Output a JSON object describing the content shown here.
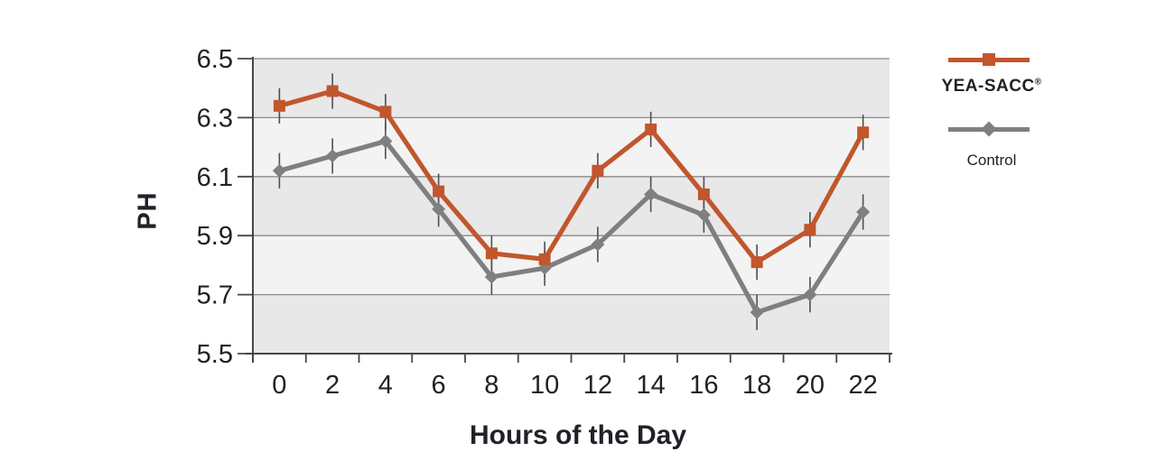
{
  "chart_data": {
    "type": "line",
    "title": "",
    "xlabel": "Hours of the Day",
    "ylabel": "PH",
    "x_tick_labels": [
      "0",
      "2",
      "4",
      "6",
      "8",
      "10",
      "12",
      "14",
      "16",
      "18",
      "20",
      "22"
    ],
    "x": [
      0,
      2,
      4,
      6,
      8,
      10,
      12,
      14,
      16,
      18,
      20,
      22
    ],
    "ylim": [
      5.5,
      6.5
    ],
    "yticks": [
      6.5,
      6.3,
      6.1,
      5.9,
      5.7,
      5.5
    ],
    "grid": "horizontal gridlines at each 0.2 step",
    "band_colors": [
      "#e8e8e8",
      "#f3f3f3"
    ],
    "gridline_color": "#8a8a8a",
    "axis_color": "#454545",
    "error_bar_color": "#4f4f4f",
    "error_bar_half_height": 0.06,
    "legend_position": "right",
    "series": [
      {
        "name": "YEA-SACC®",
        "color": "#c2562d",
        "marker": "square",
        "values": [
          6.34,
          6.39,
          6.32,
          6.05,
          5.84,
          5.82,
          6.12,
          6.26,
          6.04,
          5.81,
          5.92,
          6.25
        ]
      },
      {
        "name": "Control",
        "color": "#7f7f7f",
        "marker": "diamond",
        "values": [
          6.12,
          6.17,
          6.22,
          5.99,
          5.76,
          5.79,
          5.87,
          6.04,
          5.97,
          5.64,
          5.7,
          5.98
        ]
      }
    ]
  },
  "legend": {
    "series1_label": "YEA-SACC",
    "series1_reg_mark": "®",
    "series2_label": "Control",
    "series1_color": "#c2562d",
    "series2_color": "#7f7f7f"
  }
}
